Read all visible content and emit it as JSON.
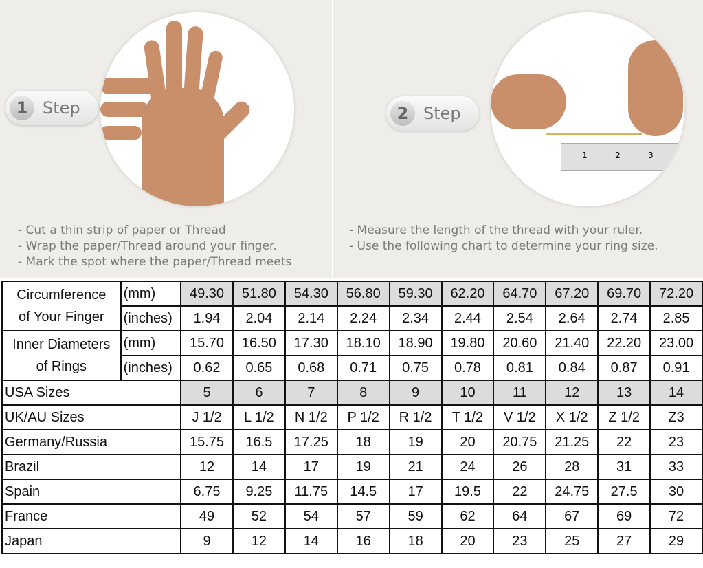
{
  "steps": [
    {
      "number": "1",
      "label": "Step",
      "bullets": [
        "- Cut a thin strip of paper or Thread",
        "- Wrap the paper/Thread around your finger.",
        "- Mark the spot where the paper/Thread meets"
      ]
    },
    {
      "number": "2",
      "label": "Step",
      "bullets": [
        "- Measure the length of the thread with your ruler.",
        "- Use the following chart to determine your ring size."
      ]
    }
  ],
  "ruler_marks": [
    "1",
    "2",
    "3"
  ],
  "table": {
    "circumference": {
      "label_line1": "Circumference",
      "label_line2": "of Your Finger",
      "mm_unit": "(mm)",
      "in_unit": "(inches)",
      "mm": [
        "49.30",
        "51.80",
        "54.30",
        "56.80",
        "59.30",
        "62.20",
        "64.70",
        "67.20",
        "69.70",
        "72.20"
      ],
      "inches": [
        "1.94",
        "2.04",
        "2.14",
        "2.24",
        "2.34",
        "2.44",
        "2.54",
        "2.64",
        "2.74",
        "2.85"
      ]
    },
    "diameter": {
      "label_line1": "Inner Diameters",
      "label_line2": "of Rings",
      "mm_unit": "(mm)",
      "in_unit": "(inches)",
      "mm": [
        "15.70",
        "16.50",
        "17.30",
        "18.10",
        "18.90",
        "19.80",
        "20.60",
        "21.40",
        "22.20",
        "23.00"
      ],
      "inches": [
        "0.62",
        "0.65",
        "0.68",
        "0.71",
        "0.75",
        "0.78",
        "0.81",
        "0.84",
        "0.87",
        "0.91"
      ]
    },
    "rows": [
      {
        "label": "USA Sizes",
        "values": [
          "5",
          "6",
          "7",
          "8",
          "9",
          "10",
          "11",
          "12",
          "13",
          "14"
        ],
        "shaded": true
      },
      {
        "label": "UK/AU Sizes",
        "values": [
          "J 1/2",
          "L 1/2",
          "N 1/2",
          "P 1/2",
          "R 1/2",
          "T 1/2",
          "V 1/2",
          "X 1/2",
          "Z 1/2",
          "Z3"
        ]
      },
      {
        "label": "Germany/Russia",
        "values": [
          "15.75",
          "16.5",
          "17.25",
          "18",
          "19",
          "20",
          "20.75",
          "21.25",
          "22",
          "23"
        ]
      },
      {
        "label": "Brazil",
        "values": [
          "12",
          "14",
          "17",
          "19",
          "21",
          "24",
          "26",
          "28",
          "31",
          "33"
        ]
      },
      {
        "label": "Spain",
        "values": [
          "6.75",
          "9.25",
          "11.75",
          "14.5",
          "17",
          "19.5",
          "22",
          "24.75",
          "27.5",
          "30"
        ]
      },
      {
        "label": "France",
        "values": [
          "49",
          "52",
          "54",
          "57",
          "59",
          "62",
          "64",
          "67",
          "69",
          "72"
        ]
      },
      {
        "label": "Japan",
        "values": [
          "9",
          "12",
          "14",
          "16",
          "18",
          "20",
          "23",
          "25",
          "27",
          "29"
        ]
      }
    ]
  }
}
